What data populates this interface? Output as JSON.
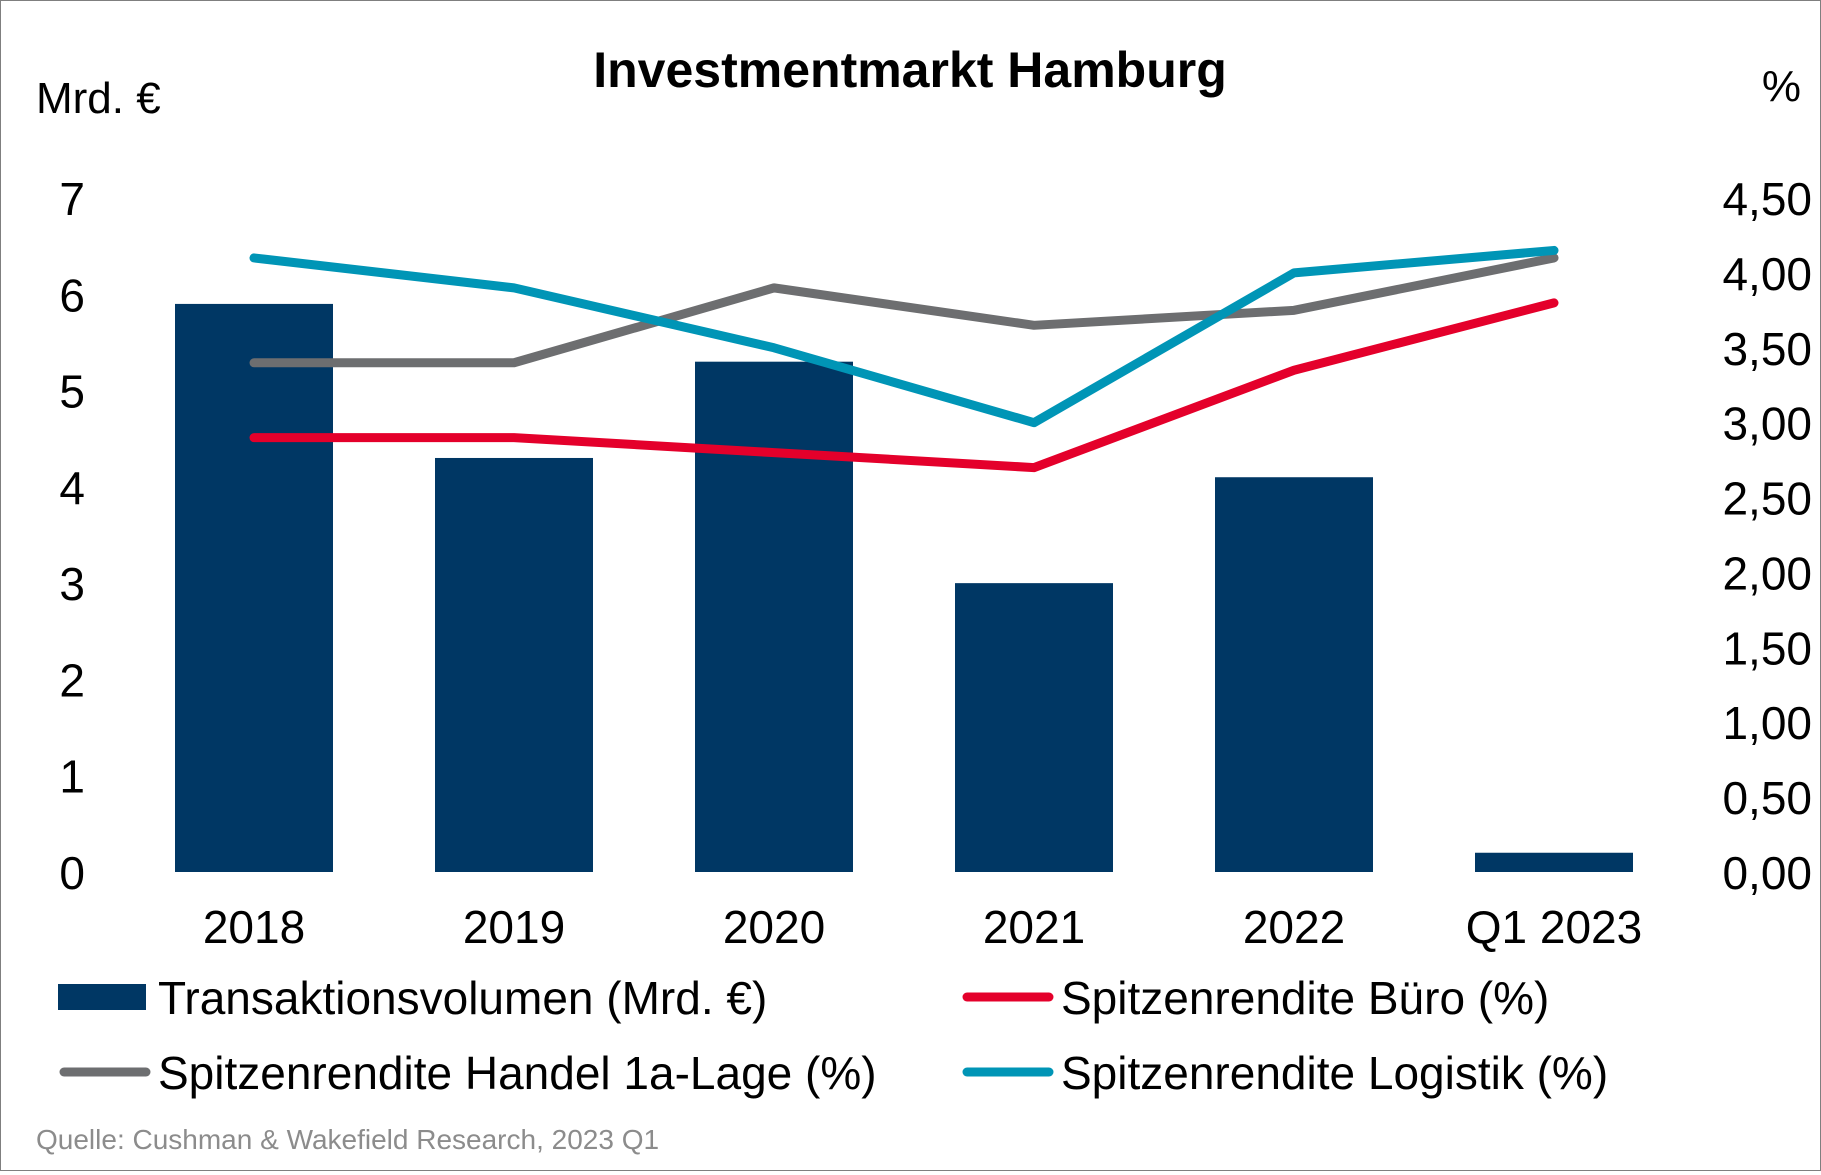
{
  "chart_data": {
    "type": "bar+line",
    "title": "Investmentmarkt Hamburg",
    "ylabel_left": "Mrd. €",
    "ylabel_right": "%",
    "categories": [
      "2018",
      "2019",
      "2020",
      "2021",
      "2022",
      "Q1 2023"
    ],
    "ylim_left": [
      0,
      7
    ],
    "yticks_left": [
      "0",
      "1",
      "2",
      "3",
      "4",
      "5",
      "6",
      "7"
    ],
    "ylim_right": [
      0,
      4.5
    ],
    "yticks_right": [
      "0,00",
      "0,50",
      "1,00",
      "1,50",
      "2,00",
      "2,50",
      "3,00",
      "3,50",
      "4,00",
      "4,50"
    ],
    "grid": false,
    "legend_position": "bottom",
    "series": [
      {
        "name": "Transaktionsvolumen (Mrd. €)",
        "type": "bar",
        "axis": "left",
        "color": "#003764",
        "values": [
          5.9,
          4.3,
          5.3,
          3.0,
          4.1,
          0.2
        ]
      },
      {
        "name": "Spitzenrendite Büro (%)",
        "type": "line",
        "axis": "right",
        "color": "#e4002b",
        "values": [
          2.9,
          2.9,
          2.8,
          2.7,
          3.35,
          3.8
        ]
      },
      {
        "name": "Spitzenrendite Handel 1a-Lage (%)",
        "type": "line",
        "axis": "right",
        "color": "#6d6e70",
        "values": [
          3.4,
          3.4,
          3.9,
          3.65,
          3.75,
          4.1
        ]
      },
      {
        "name": "Spitzenrendite Logistik (%)",
        "type": "line",
        "axis": "right",
        "color": "#0095b6",
        "values": [
          4.1,
          3.9,
          3.5,
          3.0,
          4.0,
          4.15
        ]
      }
    ],
    "source": "Quelle: Cushman & Wakefield Research, 2023 Q1"
  }
}
